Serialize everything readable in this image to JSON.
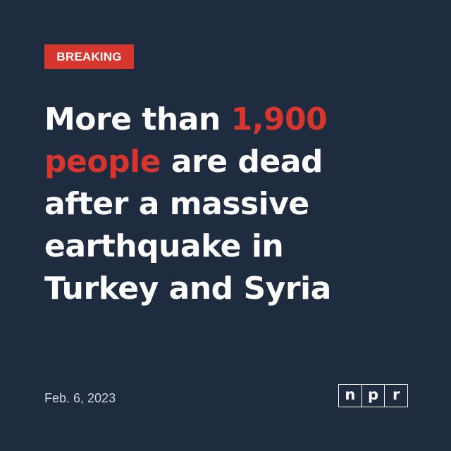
{
  "badge": {
    "label": "BREAKING",
    "color": "#d6362e"
  },
  "headline": {
    "line1_a": "More than ",
    "line1_b": "1,900",
    "line2_a": "people",
    "line2_b": " are dead",
    "line3": "after a massive",
    "line4": "earthquake in",
    "line5": "Turkey and Syria"
  },
  "date": "Feb. 6, 2023",
  "logo": {
    "letters": [
      "n",
      "p",
      "r"
    ]
  },
  "colors": {
    "background": "#1f2b3f",
    "accent": "#d6362e",
    "text": "#ffffff"
  }
}
